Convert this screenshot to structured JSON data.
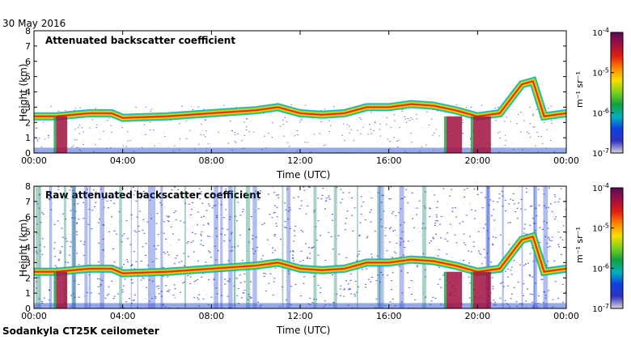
{
  "date_label": "30 May 2016",
  "footer_label": "Sodankyla CT25K ceilometer",
  "colorbar": {
    "ticks": [
      {
        "exp": -4,
        "label": "10",
        "sup": "-4"
      },
      {
        "exp": -5,
        "label": "10",
        "sup": "-5"
      },
      {
        "exp": -6,
        "label": "10",
        "sup": "-6"
      },
      {
        "exp": -7,
        "label": "10",
        "sup": "-7"
      }
    ],
    "unit": "m⁻¹ sr⁻¹",
    "colors": [
      "#5a0a5a",
      "#a01040",
      "#e02010",
      "#ff8a00",
      "#f5e000",
      "#7ad020",
      "#10a040",
      "#00b0c0",
      "#1040e0",
      "#3030c0",
      "#d8d8d8"
    ]
  },
  "chart_data": [
    {
      "type": "heatmap",
      "title": "Attenuated backscatter coefficient",
      "xlabel": "Time (UTC)",
      "ylabel": "Height (km)",
      "xlim": [
        0,
        24
      ],
      "ylim": [
        0,
        8
      ],
      "xticks": [
        "00:00",
        "04:00",
        "08:00",
        "12:00",
        "16:00",
        "20:00",
        "00:00"
      ],
      "yticks": [
        0,
        1,
        2,
        3,
        4,
        5,
        6,
        7,
        8
      ],
      "color_scale": "log",
      "zlim": [
        1e-07,
        0.0001
      ],
      "cloud_layer": [
        [
          0,
          2.4
        ],
        [
          1,
          2.4
        ],
        [
          2.5,
          2.6
        ],
        [
          3.5,
          2.6
        ],
        [
          4,
          2.3
        ],
        [
          6,
          2.4
        ],
        [
          8,
          2.6
        ],
        [
          9,
          2.7
        ],
        [
          10,
          2.8
        ],
        [
          11,
          3.0
        ],
        [
          12,
          2.6
        ],
        [
          13,
          2.5
        ],
        [
          14,
          2.6
        ],
        [
          15,
          3.0
        ],
        [
          16,
          3.0
        ],
        [
          17,
          3.2
        ],
        [
          18,
          3.1
        ],
        [
          19,
          2.8
        ],
        [
          20,
          2.4
        ],
        [
          21,
          2.6
        ],
        [
          22,
          4.5
        ],
        [
          22.5,
          4.7
        ],
        [
          23,
          2.4
        ],
        [
          24,
          2.6
        ]
      ]
    },
    {
      "type": "heatmap",
      "title": "Raw attenuated backscatter coefficient",
      "xlabel": "Time (UTC)",
      "ylabel": "Height (km)",
      "xlim": [
        0,
        24
      ],
      "ylim": [
        0,
        8
      ],
      "xticks": [
        "00:00",
        "04:00",
        "08:00",
        "12:00",
        "16:00",
        "20:00",
        "00:00"
      ],
      "yticks": [
        0,
        1,
        2,
        3,
        4,
        5,
        6,
        7,
        8
      ],
      "color_scale": "log",
      "zlim": [
        1e-07,
        0.0001
      ],
      "cloud_layer": [
        [
          0,
          2.4
        ],
        [
          1,
          2.4
        ],
        [
          2.5,
          2.6
        ],
        [
          3.5,
          2.6
        ],
        [
          4,
          2.3
        ],
        [
          6,
          2.4
        ],
        [
          8,
          2.6
        ],
        [
          9,
          2.7
        ],
        [
          10,
          2.8
        ],
        [
          11,
          3.0
        ],
        [
          12,
          2.6
        ],
        [
          13,
          2.5
        ],
        [
          14,
          2.6
        ],
        [
          15,
          3.0
        ],
        [
          16,
          3.0
        ],
        [
          17,
          3.2
        ],
        [
          18,
          3.1
        ],
        [
          19,
          2.8
        ],
        [
          20,
          2.4
        ],
        [
          21,
          2.6
        ],
        [
          22,
          4.5
        ],
        [
          22.5,
          4.7
        ],
        [
          23,
          2.4
        ],
        [
          24,
          2.6
        ]
      ]
    }
  ]
}
